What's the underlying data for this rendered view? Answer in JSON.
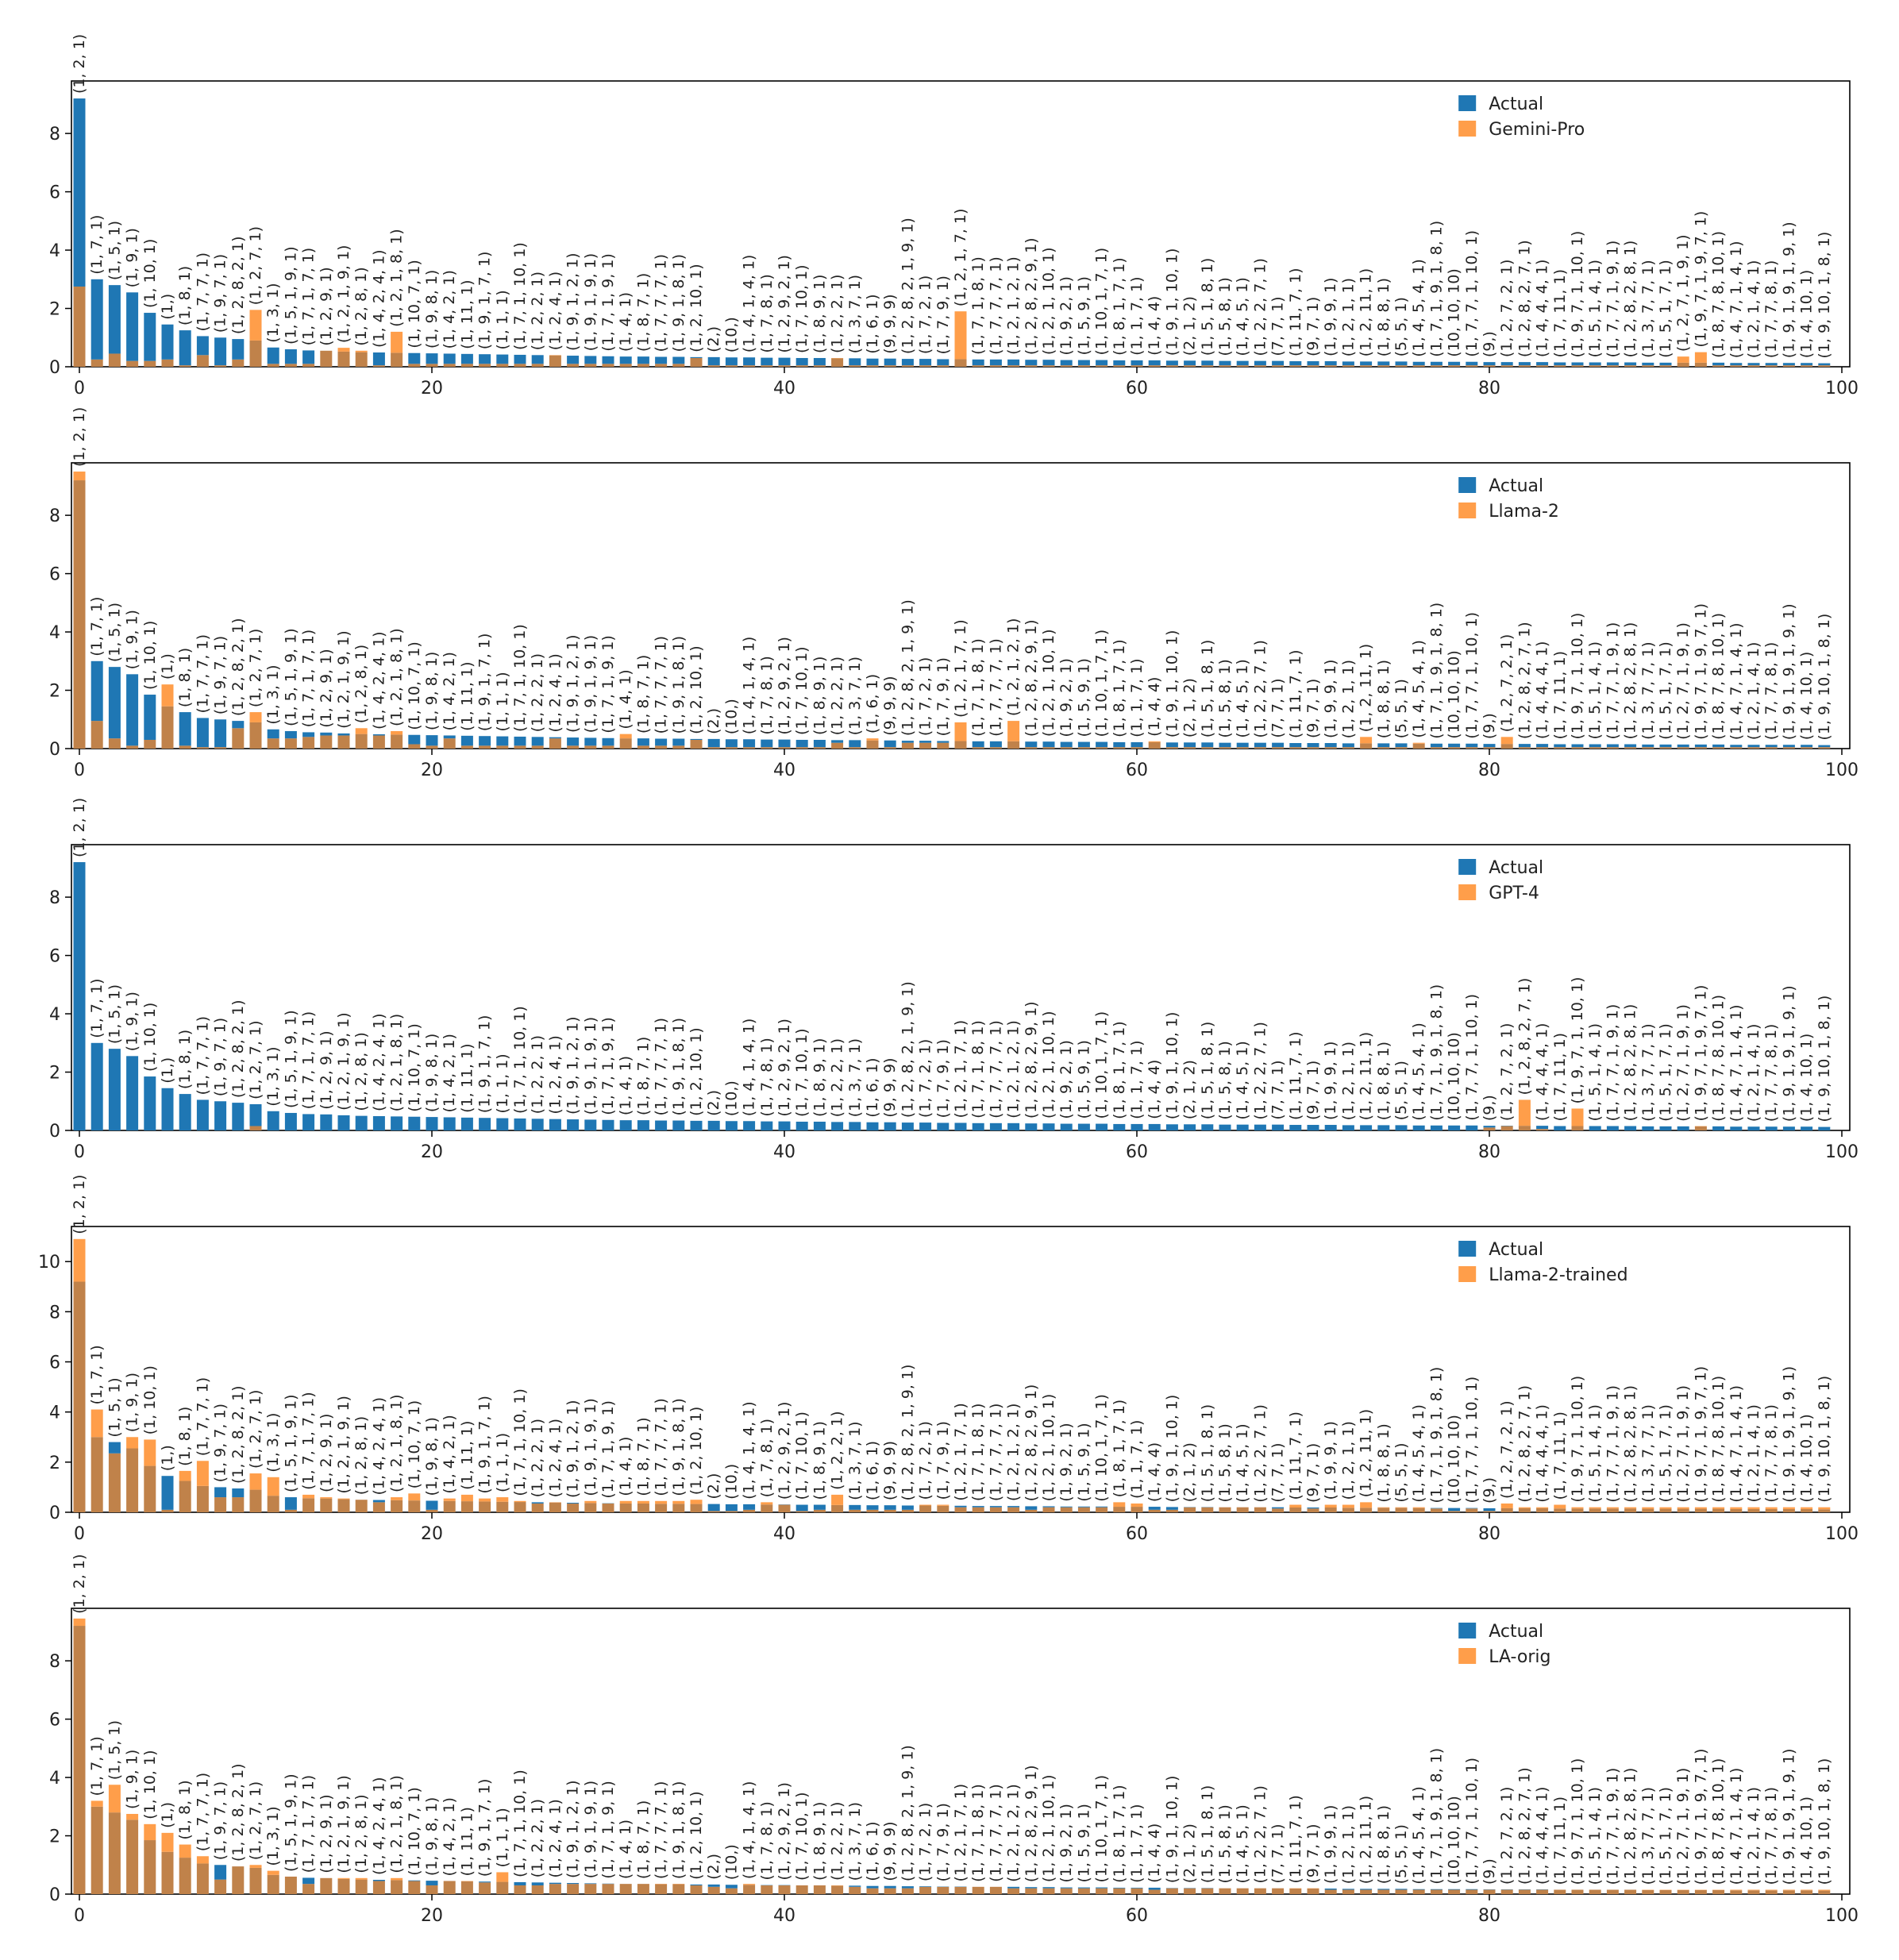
{
  "colors": {
    "actual": "#1f77b4",
    "model": "#ff9e4a",
    "overlap": "#c0824a"
  },
  "categories": [
    "(1, 2, 1)",
    "(1, 7, 1)",
    "(1, 5, 1)",
    "(1, 9, 1)",
    "(1, 10, 1)",
    "(1,)",
    "(1, 8, 1)",
    "(1, 7, 7, 1)",
    "(1, 9, 7, 1)",
    "(1, 2, 8, 2, 1)",
    "(1, 2, 7, 1)",
    "(1, 3, 1)",
    "(1, 5, 1, 9, 1)",
    "(1, 7, 1, 7, 1)",
    "(1, 2, 9, 1)",
    "(1, 2, 1, 9, 1)",
    "(1, 2, 8, 1)",
    "(1, 4, 2, 4, 1)",
    "(1, 2, 1, 8, 1)",
    "(1, 10, 7, 1)",
    "(1, 9, 8, 1)",
    "(1, 4, 2, 1)",
    "(1, 11, 1)",
    "(1, 9, 1, 7, 1)",
    "(1, 1, 1)",
    "(1, 7, 1, 10, 1)",
    "(1, 2, 2, 1)",
    "(1, 2, 4, 1)",
    "(1, 9, 1, 2, 1)",
    "(1, 9, 1, 9, 1)",
    "(1, 7, 1, 9, 1)",
    "(1, 4, 1)",
    "(1, 8, 7, 1)",
    "(1, 7, 7, 7, 1)",
    "(1, 9, 1, 8, 1)",
    "(1, 2, 10, 1)",
    "(2,)",
    "(10,)",
    "(1, 4, 1, 4, 1)",
    "(1, 7, 8, 1)",
    "(1, 2, 9, 2, 1)",
    "(1, 7, 10, 1)",
    "(1, 8, 9, 1)",
    "(1, 2, 2, 1)",
    "(1, 3, 7, 1)",
    "(1, 6, 1)",
    "(9, 9, 9)",
    "(1, 2, 8, 2, 1, 9, 1)",
    "(1, 7, 2, 1)",
    "(1, 7, 9, 1)",
    "(1, 2, 1, 7, 1)",
    "(1, 7, 1, 8, 1)",
    "(1, 7, 7, 7, 1)",
    "(1, 2, 1, 2, 1)",
    "(1, 2, 8, 2, 9, 1)",
    "(1, 2, 1, 10, 1)",
    "(1, 9, 2, 1)",
    "(1, 5, 9, 1)",
    "(1, 10, 1, 7, 1)",
    "(1, 8, 1, 7, 1)",
    "(1, 1, 7, 1)",
    "(1, 4, 4)",
    "(1, 9, 1, 10, 1)",
    "(2, 1, 2)",
    "(1, 5, 1, 8, 1)",
    "(1, 5, 8, 1)",
    "(1, 4, 5, 1)",
    "(1, 2, 2, 7, 1)",
    "(7, 7, 1)",
    "(1, 11, 7, 1)",
    "(9, 7, 1)",
    "(1, 9, 9, 1)",
    "(1, 2, 1, 1)",
    "(1, 2, 11, 1)",
    "(1, 8, 8, 1)",
    "(5, 5, 1)",
    "(1, 4, 5, 4, 1)",
    "(1, 7, 1, 9, 1, 8, 1)",
    "(10, 10, 10)",
    "(1, 7, 7, 1, 10, 1)",
    "(9,)",
    "(1, 2, 7, 2, 1)",
    "(1, 2, 8, 2, 7, 1)",
    "(1, 4, 4, 4, 1)",
    "(1, 7, 11, 1)",
    "(1, 9, 7, 1, 10, 1)",
    "(1, 5, 1, 4, 1)",
    "(1, 7, 7, 1, 9, 1)",
    "(1, 2, 8, 2, 8, 1)",
    "(1, 3, 7, 7, 1)",
    "(1, 5, 1, 7, 1)",
    "(1, 2, 7, 1, 9, 1)",
    "(1, 9, 7, 1, 9, 7, 1)",
    "(1, 8, 7, 8, 10, 1)",
    "(1, 4, 7, 1, 4, 1)",
    "(1, 2, 1, 4, 1)",
    "(1, 7, 7, 8, 1)",
    "(1, 9, 1, 9, 1, 9, 1)",
    "(1, 4, 10, 1)",
    "(1, 9, 10, 1, 8, 1)"
  ],
  "actual": [
    9.2,
    3.0,
    2.8,
    2.55,
    1.85,
    1.45,
    1.25,
    1.05,
    1.0,
    0.95,
    0.9,
    0.66,
    0.6,
    0.56,
    0.55,
    0.52,
    0.5,
    0.49,
    0.48,
    0.47,
    0.46,
    0.45,
    0.44,
    0.43,
    0.42,
    0.41,
    0.4,
    0.39,
    0.38,
    0.37,
    0.36,
    0.35,
    0.35,
    0.34,
    0.34,
    0.33,
    0.33,
    0.32,
    0.32,
    0.31,
    0.31,
    0.3,
    0.3,
    0.29,
    0.29,
    0.28,
    0.28,
    0.27,
    0.27,
    0.26,
    0.26,
    0.25,
    0.25,
    0.25,
    0.24,
    0.24,
    0.23,
    0.23,
    0.23,
    0.22,
    0.22,
    0.22,
    0.21,
    0.21,
    0.21,
    0.2,
    0.2,
    0.2,
    0.2,
    0.19,
    0.19,
    0.19,
    0.18,
    0.18,
    0.18,
    0.18,
    0.17,
    0.17,
    0.17,
    0.17,
    0.16,
    0.16,
    0.16,
    0.16,
    0.15,
    0.15,
    0.15,
    0.15,
    0.15,
    0.14,
    0.14,
    0.14,
    0.14,
    0.14,
    0.13,
    0.13,
    0.13,
    0.13,
    0.13,
    0.12
  ],
  "panels": [
    {
      "legend_actual": "Actual",
      "legend_model": "Gemini-Pro",
      "ylim": [
        0,
        9.8
      ],
      "yticks": [
        "0",
        "2",
        "4",
        "6",
        "8"
      ],
      "yticks_values": [
        0,
        2,
        4,
        6,
        8
      ],
      "xticks": [
        "0",
        "20",
        "40",
        "60",
        "80",
        "100"
      ],
      "model_values": [
        2.75,
        0.25,
        0.45,
        0.2,
        0.2,
        0.25,
        0.05,
        0.4,
        0.05,
        0.25,
        1.95,
        0.1,
        0.1,
        0.1,
        0.55,
        0.65,
        0.55,
        0.05,
        1.2,
        0.1,
        0.1,
        0.1,
        0.1,
        0.1,
        0.1,
        0.1,
        0.1,
        0.4,
        0.1,
        0.1,
        0.1,
        0.1,
        0.1,
        0.1,
        0.1,
        0.3,
        0.05,
        0.05,
        0.05,
        0.05,
        0.05,
        0.05,
        0.05,
        0.3,
        0.05,
        0.05,
        0.05,
        0.05,
        0.05,
        0.05,
        1.9,
        0.05,
        0.05,
        0.05,
        0.05,
        0.05,
        0.05,
        0.05,
        0.05,
        0.05,
        0.05,
        0.05,
        0.05,
        0.05,
        0.05,
        0.05,
        0.05,
        0.05,
        0.05,
        0.05,
        0.05,
        0.05,
        0.05,
        0.05,
        0.05,
        0.05,
        0.05,
        0.05,
        0.05,
        0.05,
        0.05,
        0.05,
        0.05,
        0.05,
        0.05,
        0.05,
        0.05,
        0.05,
        0.05,
        0.05,
        0.05,
        0.35,
        0.5,
        0.05,
        0.05,
        0.05,
        0.05,
        0.05,
        0.05,
        0.05
      ]
    },
    {
      "legend_actual": "Actual",
      "legend_model": "Llama-2",
      "ylim": [
        0,
        9.8
      ],
      "yticks": [
        "0",
        "2",
        "4",
        "6",
        "8"
      ],
      "yticks_values": [
        0,
        2,
        4,
        6,
        8
      ],
      "xticks": [
        "0",
        "20",
        "40",
        "60",
        "80",
        "100"
      ],
      "model_values": [
        9.5,
        0.95,
        0.35,
        0.1,
        0.3,
        2.2,
        0.1,
        0.05,
        0.05,
        0.7,
        1.25,
        0.35,
        0.35,
        0.4,
        0.45,
        0.45,
        0.7,
        0.45,
        0.6,
        0.15,
        0.1,
        0.35,
        0.1,
        0.1,
        0.1,
        0.1,
        0.1,
        0.35,
        0.1,
        0.1,
        0.1,
        0.5,
        0.1,
        0.1,
        0.1,
        0.3,
        0.05,
        0.05,
        0.05,
        0.05,
        0.05,
        0.05,
        0.05,
        0.2,
        0.05,
        0.35,
        0.05,
        0.2,
        0.2,
        0.2,
        0.9,
        0.05,
        0.05,
        0.95,
        0.05,
        0.05,
        0.05,
        0.05,
        0.05,
        0.05,
        0.05,
        0.25,
        0.05,
        0.05,
        0.05,
        0.05,
        0.05,
        0.05,
        0.05,
        0.05,
        0.05,
        0.05,
        0.05,
        0.4,
        0.05,
        0.05,
        0.2,
        0.05,
        0.05,
        0.05,
        0.05,
        0.4,
        0.05,
        0.05,
        0.05,
        0.05,
        0.05,
        0.05,
        0.05,
        0.05,
        0.05,
        0.05,
        0.05,
        0.05,
        0.05,
        0.05,
        0.05,
        0.05,
        0.05,
        0.05
      ]
    },
    {
      "legend_actual": "Actual",
      "legend_model": "GPT-4",
      "ylim": [
        0,
        9.8
      ],
      "yticks": [
        "0",
        "2",
        "4",
        "6",
        "8"
      ],
      "yticks_values": [
        0,
        2,
        4,
        6,
        8
      ],
      "xticks": [
        "0",
        "20",
        "40",
        "60",
        "80",
        "100"
      ],
      "model_values": [
        0,
        0,
        0,
        0,
        0,
        0,
        0,
        0,
        0,
        0,
        0.15,
        0,
        0,
        0,
        0,
        0,
        0,
        0,
        0,
        0,
        0,
        0,
        0,
        0,
        0,
        0,
        0,
        0,
        0,
        0,
        0,
        0,
        0,
        0,
        0,
        0,
        0,
        0,
        0,
        0,
        0,
        0,
        0,
        0,
        0,
        0,
        0,
        0,
        0,
        0,
        0,
        0,
        0,
        0,
        0,
        0,
        0,
        0,
        0,
        0,
        0,
        0,
        0,
        0,
        0,
        0,
        0,
        0,
        0,
        0,
        0,
        0,
        0,
        0,
        0,
        0,
        0,
        0,
        0,
        0,
        0.1,
        0.15,
        1.05,
        0.05,
        0,
        0.75,
        0,
        0,
        0,
        0,
        0,
        0,
        0.15,
        0,
        0,
        0,
        0,
        0,
        0,
        0
      ]
    },
    {
      "legend_actual": "Actual",
      "legend_model": "Llama-2-trained",
      "ylim": [
        0,
        11.4
      ],
      "yticks": [
        "0",
        "2",
        "4",
        "6",
        "8",
        "10"
      ],
      "yticks_values": [
        0,
        2,
        4,
        6,
        8,
        10
      ],
      "xticks": [
        "0",
        "20",
        "40",
        "60",
        "80",
        "100"
      ],
      "model_values": [
        10.9,
        4.1,
        2.35,
        3.0,
        2.9,
        0.1,
        1.65,
        2.05,
        0.6,
        0.6,
        1.55,
        1.4,
        0.1,
        0.7,
        0.6,
        0.55,
        0.5,
        0.4,
        0.6,
        0.75,
        0.1,
        0.55,
        0.7,
        0.55,
        0.6,
        0.45,
        0.35,
        0.4,
        0.35,
        0.45,
        0.35,
        0.45,
        0.45,
        0.45,
        0.45,
        0.5,
        0.05,
        0.05,
        0.1,
        0.4,
        0.3,
        0.05,
        0.1,
        0.7,
        0.1,
        0.1,
        0.1,
        0.1,
        0.3,
        0.3,
        0.2,
        0.2,
        0.2,
        0.2,
        0.1,
        0.2,
        0.2,
        0.2,
        0.2,
        0.4,
        0.35,
        0.1,
        0.1,
        0.2,
        0.2,
        0.2,
        0.2,
        0.2,
        0.15,
        0.3,
        0.15,
        0.3,
        0.3,
        0.4,
        0.2,
        0.2,
        0.2,
        0.15,
        0.05,
        0.15,
        0.05,
        0.35,
        0.2,
        0.2,
        0.3,
        0.2,
        0.2,
        0.2,
        0.2,
        0.2,
        0.2,
        0.2,
        0.2,
        0.2,
        0.2,
        0.2,
        0.2,
        0.2,
        0.2,
        0.2
      ]
    },
    {
      "legend_actual": "Actual",
      "legend_model": "LA-orig",
      "ylim": [
        0,
        9.8
      ],
      "yticks": [
        "0",
        "2",
        "4",
        "6",
        "8"
      ],
      "yticks_values": [
        0,
        2,
        4,
        6,
        8
      ],
      "xticks": [
        "0",
        "20",
        "40",
        "60",
        "80",
        "100"
      ],
      "model_values": [
        9.45,
        3.2,
        3.75,
        2.75,
        2.4,
        2.1,
        1.7,
        1.3,
        0.5,
        0.95,
        1.0,
        0.8,
        0.6,
        0.35,
        0.55,
        0.55,
        0.55,
        0.45,
        0.55,
        0.45,
        0.3,
        0.45,
        0.45,
        0.4,
        0.75,
        0.3,
        0.3,
        0.35,
        0.35,
        0.35,
        0.35,
        0.35,
        0.35,
        0.35,
        0.35,
        0.3,
        0.25,
        0.2,
        0.35,
        0.3,
        0.3,
        0.3,
        0.3,
        0.3,
        0.25,
        0.2,
        0.2,
        0.2,
        0.25,
        0.25,
        0.25,
        0.25,
        0.25,
        0.2,
        0.2,
        0.2,
        0.2,
        0.2,
        0.2,
        0.2,
        0.2,
        0.15,
        0.2,
        0.2,
        0.2,
        0.2,
        0.2,
        0.2,
        0.2,
        0.2,
        0.2,
        0.15,
        0.15,
        0.15,
        0.15,
        0.15,
        0.15,
        0.15,
        0.15,
        0.15,
        0.15,
        0.15,
        0.15,
        0.15,
        0.15,
        0.15,
        0.15,
        0.15,
        0.15,
        0.15,
        0.15,
        0.15,
        0.15,
        0.15,
        0.15,
        0.15,
        0.15,
        0.15,
        0.15,
        0.15
      ]
    }
  ],
  "chart_data": [
    {
      "type": "bar",
      "title": "",
      "series": [
        {
          "name": "Actual"
        },
        {
          "name": "Gemini-Pro"
        }
      ],
      "xlim": [
        0,
        100
      ],
      "ylim": [
        0,
        9.8
      ],
      "note": "categories/values shared at top level: categories, actual, panels[0].model_values"
    },
    {
      "type": "bar",
      "title": "",
      "series": [
        {
          "name": "Actual"
        },
        {
          "name": "Llama-2"
        }
      ],
      "xlim": [
        0,
        100
      ],
      "ylim": [
        0,
        9.8
      ]
    },
    {
      "type": "bar",
      "title": "",
      "series": [
        {
          "name": "Actual"
        },
        {
          "name": "GPT-4"
        }
      ],
      "xlim": [
        0,
        100
      ],
      "ylim": [
        0,
        9.8
      ]
    },
    {
      "type": "bar",
      "title": "",
      "series": [
        {
          "name": "Actual"
        },
        {
          "name": "Llama-2-trained"
        }
      ],
      "xlim": [
        0,
        100
      ],
      "ylim": [
        0,
        11.4
      ]
    },
    {
      "type": "bar",
      "title": "",
      "series": [
        {
          "name": "Actual"
        },
        {
          "name": "LA-orig"
        }
      ],
      "xlim": [
        0,
        100
      ],
      "ylim": [
        0,
        9.8
      ]
    }
  ]
}
